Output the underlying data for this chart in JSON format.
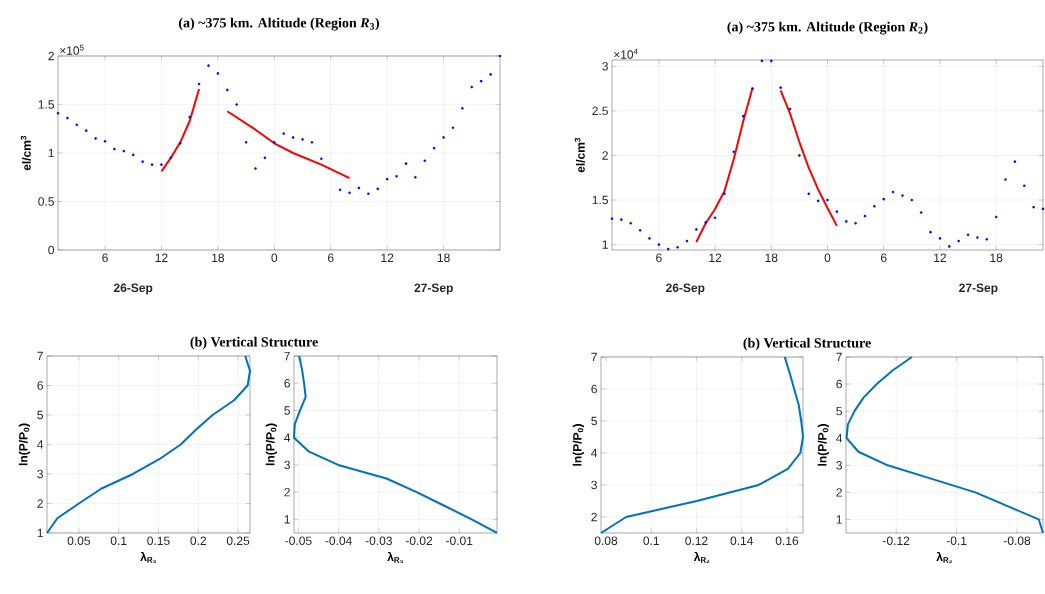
{
  "chart_data": [
    {
      "type": "scatter",
      "title": "(a) ~375 km. Altitude (Region *R*$_{3}$)",
      "ylabel": "el/cm$^{3}$",
      "xlim": [
        "--09-26T01:00",
        "--09-28T00:00"
      ],
      "ylim": [
        0,
        2
      ],
      "xticks": [
        {
          "value": "--09-26T06:00",
          "label": "6"
        },
        {
          "value": "--09-26T12:00",
          "label": "12"
        },
        {
          "value": "--09-26T18:00",
          "label": "18"
        },
        {
          "value": "--09-27T00:00",
          "label": "0"
        },
        {
          "value": "--09-27T06:00",
          "label": "6"
        },
        {
          "value": "--09-27T12:00",
          "label": "12"
        },
        {
          "value": "--09-27T18:00",
          "label": "18"
        }
      ],
      "yticks": [
        0,
        0.5,
        1,
        1.5,
        2
      ],
      "grid": true,
      "annotations": [
        "×10$^{5}$",
        "26-Sep",
        "27-Sep"
      ],
      "series": [
        {
          "type": "scatter",
          "marker": "circle",
          "color": "#0000ff",
          "x": [
            "--09-26T01:00",
            "--09-26T02:00",
            "--09-26T03:00",
            "--09-26T04:00",
            "--09-26T05:00",
            "--09-26T06:00",
            "--09-26T07:00",
            "--09-26T08:00",
            "--09-26T09:00",
            "--09-26T10:00",
            "--09-26T11:00",
            "--09-26T12:00",
            "--09-26T13:00",
            "--09-26T14:00",
            "--09-26T15:00",
            "--09-26T16:00",
            "--09-26T17:00",
            "--09-26T18:00",
            "--09-26T19:00",
            "--09-26T20:00",
            "--09-26T21:00",
            "--09-26T22:00",
            "--09-26T23:00",
            "--09-27T00:00",
            "--09-27T01:00",
            "--09-27T02:00",
            "--09-27T03:00",
            "--09-27T04:00",
            "--09-27T05:00",
            "--09-27T07:00",
            "--09-27T08:00",
            "--09-27T09:00",
            "--09-27T10:00",
            "--09-27T11:00",
            "--09-27T12:00",
            "--09-27T13:00",
            "--09-27T14:00",
            "--09-27T15:00",
            "--09-27T16:00",
            "--09-27T17:00",
            "--09-27T18:00",
            "--09-27T19:00",
            "--09-27T20:00",
            "--09-27T21:00",
            "--09-27T22:00",
            "--09-27T23:00",
            "--09-28T00:00"
          ],
          "values": [
            1.41,
            1.36,
            1.29,
            1.23,
            1.15,
            1.12,
            1.04,
            1.02,
            0.98,
            0.91,
            0.88,
            0.88,
            0.95,
            1.1,
            1.37,
            1.71,
            1.9,
            1.82,
            1.65,
            1.5,
            1.11,
            0.84,
            0.95,
            1.11,
            1.2,
            1.16,
            1.14,
            1.11,
            0.94,
            0.62,
            0.59,
            0.64,
            0.58,
            0.63,
            0.73,
            0.76,
            0.89,
            0.75,
            0.92,
            1.05,
            1.16,
            1.26,
            1.46,
            1.68,
            1.74,
            1.81,
            2.0
          ]
        },
        {
          "type": "line",
          "color": "#ff0000",
          "x": [
            "--09-26T12:00",
            "--09-26T13:00",
            "--09-26T14:00",
            "--09-26T15:00",
            "--09-26T16:00"
          ],
          "values": [
            0.81,
            0.95,
            1.11,
            1.33,
            1.66
          ]
        },
        {
          "type": "line",
          "color": "#ff0000",
          "x": [
            "--09-26T19:00",
            "--09-26T22:00",
            "--09-27T00:00",
            "--09-27T02:00",
            "--09-27T05:00",
            "--09-27T08:00"
          ],
          "values": [
            1.43,
            1.24,
            1.1,
            1.0,
            0.88,
            0.74
          ]
        }
      ]
    },
    {
      "type": "scatter",
      "title": "(a) ~375 km. Altitude (Region *R*$_{2}$)",
      "ylabel": "el/cm$^{3}$",
      "xlim": [
        "--09-26T01:00",
        "--09-27T23:00"
      ],
      "ylim": [
        0.94,
        3.07
      ],
      "xticks": [
        {
          "value": "--09-26T06:00",
          "label": "6"
        },
        {
          "value": "--09-26T12:00",
          "label": "12"
        },
        {
          "value": "--09-26T18:00",
          "label": "18"
        },
        {
          "value": "--09-27T00:00",
          "label": "0"
        },
        {
          "value": "--09-27T06:00",
          "label": "6"
        },
        {
          "value": "--09-27T12:00",
          "label": "12"
        },
        {
          "value": "--09-27T18:00",
          "label": "18"
        }
      ],
      "yticks": [
        1,
        1.5,
        2,
        2.5,
        3
      ],
      "grid": true,
      "annotations": [
        "×10$^{4}$",
        "26-Sep",
        "27-Sep"
      ],
      "series": [
        {
          "type": "scatter",
          "marker": "circle",
          "color": "#0000ff",
          "x": [
            "--09-26T01:00",
            "--09-26T02:00",
            "--09-26T03:00",
            "--09-26T04:00",
            "--09-26T05:00",
            "--09-26T06:00",
            "--09-26T07:00",
            "--09-26T08:00",
            "--09-26T09:00",
            "--09-26T10:00",
            "--09-26T11:00",
            "--09-26T12:00",
            "--09-26T13:00",
            "--09-26T14:00",
            "--09-26T15:00",
            "--09-26T16:00",
            "--09-26T17:00",
            "--09-26T18:00",
            "--09-26T19:00",
            "--09-26T20:00",
            "--09-26T21:00",
            "--09-26T22:00",
            "--09-26T23:00",
            "--09-27T00:00",
            "--09-27T01:00",
            "--09-27T02:00",
            "--09-27T03:00",
            "--09-27T04:00",
            "--09-27T05:00",
            "--09-27T06:00",
            "--09-27T07:00",
            "--09-27T08:00",
            "--09-27T09:00",
            "--09-27T10:00",
            "--09-27T11:00",
            "--09-27T12:00",
            "--09-27T13:00",
            "--09-27T14:00",
            "--09-27T15:00",
            "--09-27T16:00",
            "--09-27T17:00",
            "--09-27T18:00",
            "--09-27T19:00",
            "--09-27T20:00",
            "--09-27T21:00",
            "--09-27T22:00",
            "--09-27T23:00"
          ],
          "values": [
            1.29,
            1.28,
            1.24,
            1.16,
            1.07,
            1.0,
            0.95,
            0.97,
            1.04,
            1.17,
            1.25,
            1.3,
            1.57,
            2.04,
            2.44,
            2.75,
            3.06,
            3.06,
            2.76,
            2.52,
            2.0,
            1.57,
            1.49,
            1.5,
            1.37,
            1.26,
            1.24,
            1.32,
            1.43,
            1.51,
            1.59,
            1.55,
            1.5,
            1.36,
            1.14,
            1.07,
            0.98,
            1.04,
            1.11,
            1.08,
            1.06,
            1.31,
            1.73,
            1.93,
            1.66,
            1.42,
            1.4
          ]
        },
        {
          "type": "line",
          "color": "#ff0000",
          "x": [
            "--09-26T10:00",
            "--09-26T11:00",
            "--09-26T12:00",
            "--09-26T13:00",
            "--09-26T14:00",
            "--09-26T15:00",
            "--09-26T16:00"
          ],
          "values": [
            1.03,
            1.24,
            1.4,
            1.6,
            1.96,
            2.38,
            2.76
          ]
        },
        {
          "type": "line",
          "color": "#ff0000",
          "x": [
            "--09-26T19:00",
            "--09-26T20:00",
            "--09-26T21:00",
            "--09-26T22:00",
            "--09-26T23:00",
            "--09-27T00:00",
            "--09-27T01:00"
          ],
          "values": [
            2.73,
            2.47,
            2.15,
            1.86,
            1.62,
            1.41,
            1.21
          ]
        }
      ]
    },
    {
      "type": "line",
      "title": "(b) Vertical Structure",
      "xlabel": "λ$_{R₃}$",
      "ylabel": "ln(P/P$_{0}$)",
      "xlim": [
        0.01,
        0.265
      ],
      "ylim": [
        1,
        7
      ],
      "xticks": [
        0.05,
        0.1,
        0.15,
        0.2,
        0.25
      ],
      "yticks": [
        1,
        2,
        3,
        4,
        5,
        6,
        7
      ],
      "grid": true,
      "series": [
        {
          "color": "#0072bd",
          "x": [
            0.01,
            0.023,
            0.05,
            0.078,
            0.118,
            0.151,
            0.178,
            0.197,
            0.218,
            0.245,
            0.262,
            0.265,
            0.259
          ],
          "values": [
            1,
            1.5,
            2,
            2.5,
            3,
            3.5,
            4,
            4.5,
            5,
            5.5,
            6,
            6.5,
            7
          ]
        }
      ]
    },
    {
      "type": "line",
      "xlabel": "λ$_{R₃}$",
      "ylabel": "ln(P/P$_{0}$)",
      "xlim": [
        -0.0511,
        -0.0006
      ],
      "ylim": [
        0.5,
        7
      ],
      "xticks": [
        -0.05,
        -0.04,
        -0.03,
        -0.02,
        -0.01
      ],
      "yticks": [
        1,
        2,
        3,
        4,
        5,
        6,
        7
      ],
      "grid": true,
      "series": [
        {
          "color": "#0072bd",
          "x": [
            -0.0006,
            -0.0069,
            -0.0137,
            -0.0206,
            -0.0281,
            -0.0401,
            -0.0475,
            -0.0511,
            -0.0509,
            -0.0496,
            -0.0482,
            -0.0486,
            -0.0491,
            -0.0498
          ],
          "values": [
            0.5,
            1,
            1.5,
            2,
            2.5,
            3,
            3.5,
            4,
            4.5,
            5,
            5.5,
            6,
            6.5,
            7
          ]
        }
      ]
    },
    {
      "type": "line",
      "title": "(b) Vertical Structure",
      "xlabel": "λ$_{R₂}$",
      "ylabel": "ln(P/P$_{0}$)",
      "xlim": [
        0.0778,
        0.1671
      ],
      "ylim": [
        1.5,
        7
      ],
      "xticks": [
        0.08,
        0.1,
        0.12,
        0.14,
        0.16
      ],
      "yticks": [
        2,
        3,
        4,
        5,
        6,
        7
      ],
      "grid": true,
      "series": [
        {
          "color": "#0072bd",
          "x": [
            0.0778,
            0.0889,
            0.1201,
            0.1475,
            0.1604,
            0.1659,
            0.1671,
            0.1663,
            0.1652,
            0.1632,
            0.1612,
            0.159
          ],
          "values": [
            1.5,
            2,
            2.5,
            3,
            3.5,
            4,
            4.5,
            5,
            5.5,
            6,
            6.5,
            7
          ]
        }
      ]
    },
    {
      "type": "line",
      "xlabel": "λ$_{R₂}$",
      "ylabel": "ln(P/P$_{0}$)",
      "xlim": [
        -0.1366,
        -0.0714
      ],
      "ylim": [
        0.5,
        7
      ],
      "xticks": [
        -0.12,
        -0.1,
        -0.08
      ],
      "yticks": [
        1,
        2,
        3,
        4,
        5,
        6,
        7
      ],
      "grid": true,
      "series": [
        {
          "color": "#0072bd",
          "x": [
            -0.0714,
            -0.0728,
            -0.0833,
            -0.0938,
            -0.1082,
            -0.1228,
            -0.1325,
            -0.1364,
            -0.136,
            -0.1338,
            -0.1308,
            -0.1264,
            -0.1212,
            -0.1148
          ],
          "values": [
            0.5,
            1,
            1.5,
            2,
            2.5,
            3,
            3.5,
            4,
            4.5,
            5,
            5.5,
            6,
            6.5,
            7
          ]
        }
      ]
    }
  ]
}
